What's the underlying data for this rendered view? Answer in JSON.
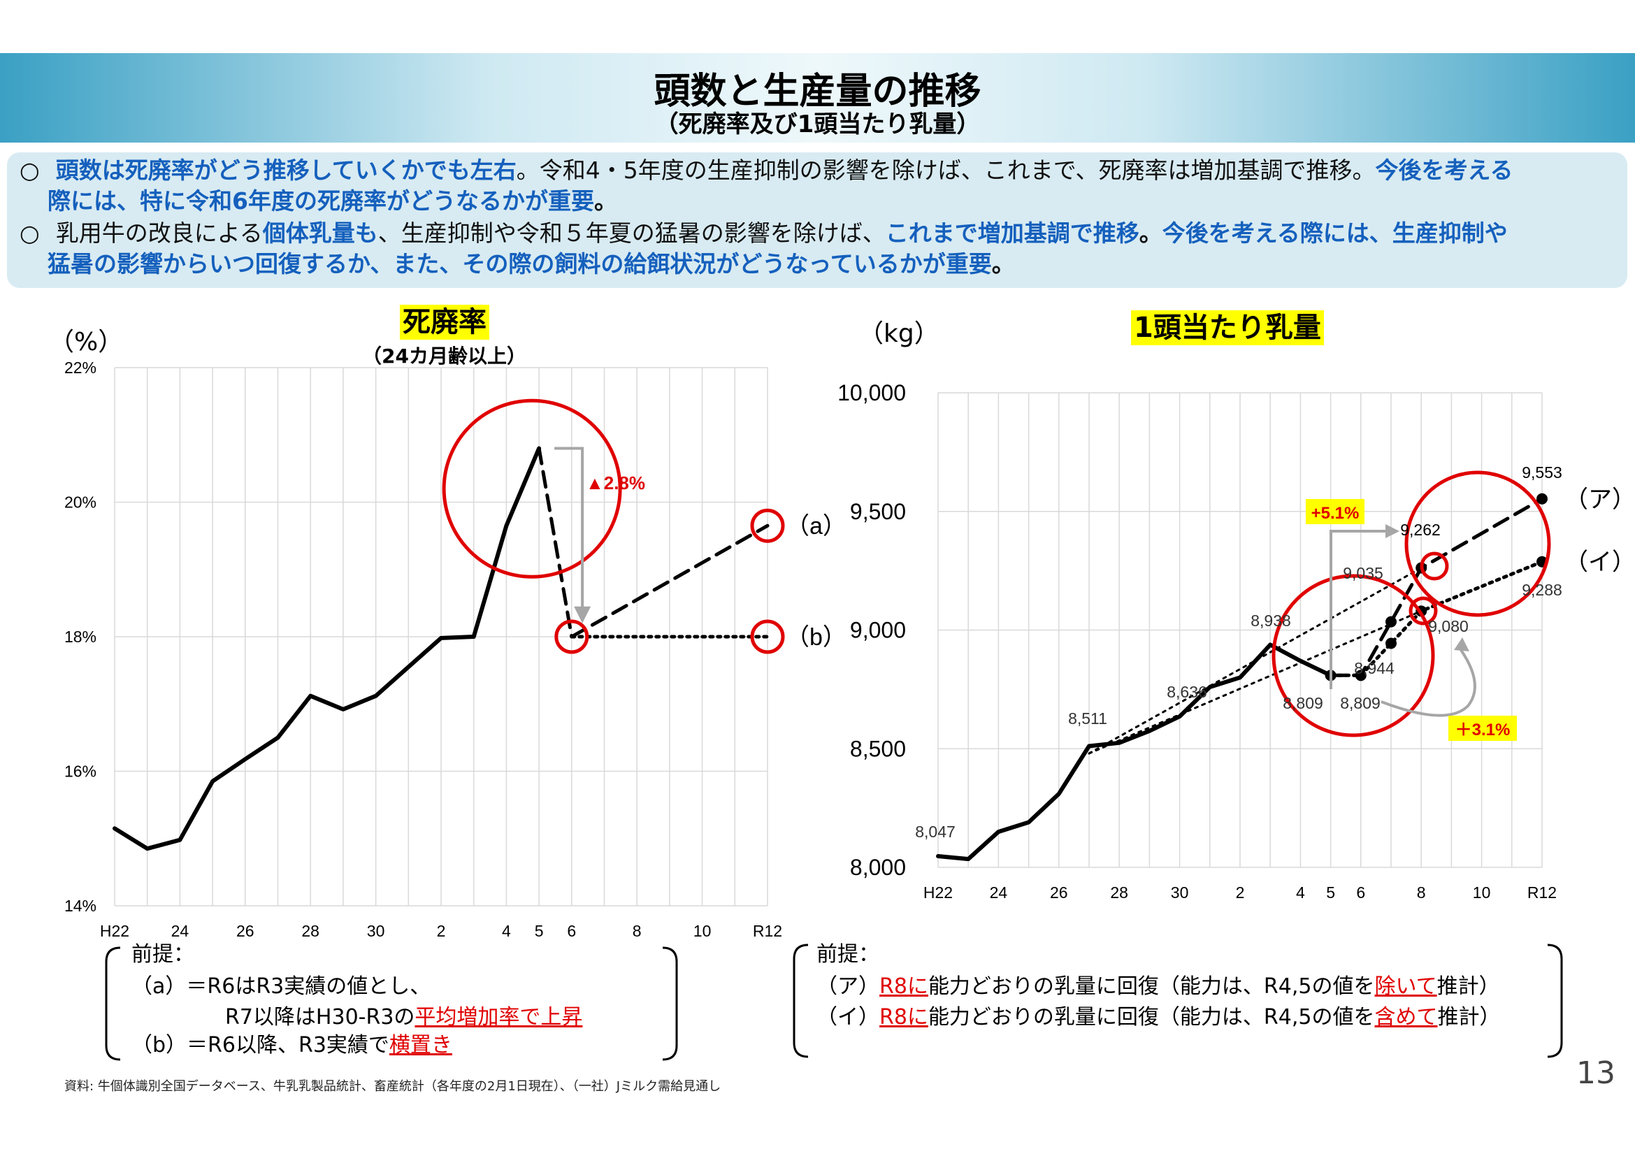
{
  "title": "頭数と生産量の推移",
  "subtitle": "（死廃率及び1頭当たり乳量）",
  "summary": {
    "l1_marker": "○",
    "l1_blue1": "頭数は死廃率がどう推移していくかでも左右",
    "l1_black": "。令和4・5年度の生産抑制の影響を除けば、これまで、死廃率は増加基調で推移。",
    "l1_blue2": "今後を考える",
    "l2_blue": "際には、特に令和6年度の死廃率がどうなるかが重要",
    "l2_black": "。",
    "l3_marker": "○",
    "l3_black1": "乳用牛の改良による",
    "l3_blue1": "個体乳量も",
    "l3_black2": "、生産抑制や令和５年夏の猛暑の影響を除けば、",
    "l3_blue2": "これまで増加基調で推移",
    "l3_black3": "。",
    "l3_blue3": "今後を考える際には、生産抑制や",
    "l4_blue": "猛暑の影響からいつ回復するか、また、その際の飼料の給餌状況がどうなっているかが重要",
    "l4_black": "。"
  },
  "chart_data": [
    {
      "type": "line",
      "title": "死廃率",
      "subtitle": "（24カ月齢以上）",
      "unit": "（%）",
      "x_ticks": [
        "H22",
        "24",
        "26",
        "28",
        "30",
        "2",
        "4",
        "5",
        "6",
        "8",
        "10",
        "R12"
      ],
      "x": [
        "H22",
        "H23",
        "H24",
        "H25",
        "H26",
        "H27",
        "H28",
        "H29",
        "H30",
        "R1",
        "R2",
        "R3",
        "R4",
        "R5",
        "R6",
        "R7",
        "R8",
        "R9",
        "R10",
        "R11",
        "R12"
      ],
      "ylim": [
        14,
        22
      ],
      "y_ticks": [
        "14%",
        "16%",
        "18%",
        "20%",
        "22%"
      ],
      "series": [
        {
          "style": "solid",
          "x": [
            "H22",
            "H23",
            "H24",
            "H25",
            "H26",
            "H27",
            "H28",
            "H29",
            "H30",
            "R1",
            "R2",
            "R3",
            "R4",
            "R5"
          ],
          "values": [
            15.15,
            14.85,
            14.98,
            15.85,
            16.18,
            16.5,
            17.12,
            16.92,
            17.12,
            17.55,
            17.98,
            18.0,
            19.65,
            20.8
          ]
        },
        {
          "style": "dashed",
          "x": [
            "R5",
            "R6"
          ],
          "values": [
            20.8,
            18.0
          ]
        },
        {
          "style": "dashed",
          "label": "（a）",
          "x": [
            "R6",
            "R12"
          ],
          "values": [
            18.0,
            19.65
          ]
        },
        {
          "style": "dotted",
          "label": "（b）",
          "x": [
            "R6",
            "R12"
          ],
          "values": [
            18.0,
            18.0
          ]
        }
      ],
      "annotations": [
        {
          "text": "▲2.8%",
          "color": "#e00000"
        }
      ]
    },
    {
      "type": "line",
      "title": "1頭当たり乳量",
      "unit": "（kg）",
      "x_ticks": [
        "H22",
        "24",
        "26",
        "28",
        "30",
        "2",
        "4",
        "5",
        "6",
        "8",
        "10",
        "R12"
      ],
      "x": [
        "H22",
        "H23",
        "H24",
        "H25",
        "H26",
        "H27",
        "H28",
        "H29",
        "H30",
        "R1",
        "R2",
        "R3",
        "R4",
        "R5",
        "R6",
        "R7",
        "R8",
        "R9",
        "R10",
        "R11",
        "R12"
      ],
      "ylim": [
        8000,
        10000
      ],
      "y_ticks": [
        "8,000",
        "8,500",
        "9,000",
        "9,500",
        "10,000"
      ],
      "series": [
        {
          "style": "solid",
          "x": [
            "H22",
            "H23",
            "H24",
            "H25",
            "H26",
            "H27",
            "H28",
            "H29",
            "H30",
            "R1",
            "R2",
            "R3",
            "R4",
            "R5"
          ],
          "values": [
            8047,
            8035,
            8150,
            8190,
            8310,
            8511,
            8525,
            8575,
            8636,
            8760,
            8800,
            8938,
            8870,
            8809
          ]
        },
        {
          "style": "dashed",
          "label": "（ア）",
          "x": [
            "R5",
            "R6",
            "R7",
            "R8",
            "R12"
          ],
          "values": [
            8809,
            8809,
            9035,
            9262,
            9553
          ]
        },
        {
          "style": "dotted",
          "label": "（イ）",
          "x": [
            "R5",
            "R6",
            "R7",
            "R8",
            "R12"
          ],
          "values": [
            8809,
            8809,
            8944,
            9080,
            9288
          ]
        },
        {
          "style": "dotted",
          "x": [
            "H27",
            "R8"
          ],
          "values": [
            8480,
            9262
          ]
        },
        {
          "style": "dotted",
          "x": [
            "H27",
            "R8"
          ],
          "values": [
            8480,
            9080
          ]
        }
      ],
      "data_labels": [
        "8,047",
        "8,511",
        "8,636",
        "8,938",
        "8,809",
        "8,809",
        "9,035",
        "8,944",
        "9,262",
        "9,080",
        "9,553",
        "9,288"
      ],
      "annotations": [
        {
          "text": "+5.1%",
          "color": "#e00000"
        },
        {
          "text": "＋3.1%",
          "color": "#e00000"
        }
      ]
    }
  ],
  "notes_left": {
    "head": "前提：",
    "a_pre": "（a）＝R6はR3実績の値とし、",
    "a2_pre": "R7以降はH30-R3の",
    "a2_red": "平均増加率で上昇",
    "b_pre": "（b）＝R6以降、R3実績で",
    "b_red": "横置き"
  },
  "notes_right": {
    "head": "前提：",
    "a_pre": "（ア）",
    "a_red1": "R8に",
    "a_mid": "能力どおりの乳量に回復（能力は、R4,5の値を",
    "a_red2": "除いて",
    "a_post": "推計）",
    "b_pre": "（イ）",
    "b_red1": "R8に",
    "b_mid": "能力どおりの乳量に回復（能力は、R4,5の値を",
    "b_red2": "含めて",
    "b_post": "推計）"
  },
  "source": "資料: 牛個体識別全国データベース、牛乳乳製品統計、畜産統計（各年度の2月1日現在）、（一社）Jミルク需給見通し",
  "page_number": "13"
}
